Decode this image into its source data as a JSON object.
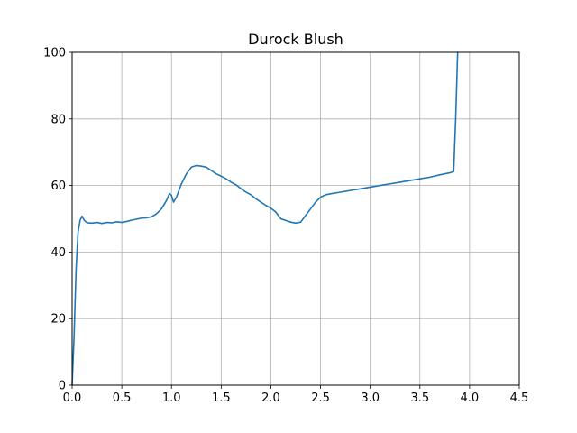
{
  "chart_data": {
    "type": "line",
    "title": "Durock Blush",
    "xlabel": "",
    "ylabel": "",
    "xlim": [
      0.0,
      4.5
    ],
    "ylim": [
      0,
      100
    ],
    "grid": true,
    "x_ticks": [
      0.0,
      0.5,
      1.0,
      1.5,
      2.0,
      2.5,
      3.0,
      3.5,
      4.0,
      4.5
    ],
    "x_tick_labels": [
      "0.0",
      "0.5",
      "1.0",
      "1.5",
      "2.0",
      "2.5",
      "3.0",
      "3.5",
      "4.0",
      "4.5"
    ],
    "y_ticks": [
      0,
      20,
      40,
      60,
      80,
      100
    ],
    "y_tick_labels": [
      "0",
      "20",
      "40",
      "60",
      "80",
      "100"
    ],
    "line_color": "#1f77b4",
    "series": [
      {
        "x": [
          0.0,
          0.02,
          0.04,
          0.06,
          0.08,
          0.1,
          0.12,
          0.15,
          0.2,
          0.25,
          0.3,
          0.35,
          0.4,
          0.45,
          0.5,
          0.55,
          0.6,
          0.65,
          0.7,
          0.75,
          0.8,
          0.85,
          0.9,
          0.95,
          0.98,
          1.0,
          1.02,
          1.05,
          1.1,
          1.15,
          1.2,
          1.25,
          1.3,
          1.35,
          1.4,
          1.45,
          1.5,
          1.55,
          1.6,
          1.65,
          1.7,
          1.75,
          1.8,
          1.85,
          1.9,
          1.95,
          2.0,
          2.05,
          2.1,
          2.15,
          2.2,
          2.25,
          2.3,
          2.35,
          2.4,
          2.45,
          2.5,
          2.55,
          2.6,
          2.7,
          2.8,
          2.9,
          3.0,
          3.1,
          3.2,
          3.3,
          3.4,
          3.5,
          3.6,
          3.7,
          3.8,
          3.84,
          3.86,
          3.88
        ],
        "y": [
          0.0,
          15.0,
          35.0,
          46.0,
          49.5,
          50.8,
          49.6,
          48.8,
          48.7,
          48.9,
          48.6,
          48.9,
          48.8,
          49.1,
          48.9,
          49.2,
          49.6,
          49.9,
          50.2,
          50.3,
          50.6,
          51.5,
          53.0,
          55.5,
          57.6,
          57.0,
          55.0,
          56.5,
          60.5,
          63.5,
          65.5,
          66.0,
          65.8,
          65.5,
          64.5,
          63.5,
          62.8,
          62.0,
          61.0,
          60.2,
          59.0,
          58.0,
          57.2,
          56.0,
          55.0,
          54.0,
          53.2,
          52.0,
          50.0,
          49.5,
          49.0,
          48.7,
          49.0,
          51.0,
          53.0,
          55.0,
          56.5,
          57.2,
          57.5,
          58.0,
          58.5,
          59.0,
          59.5,
          60.0,
          60.5,
          61.0,
          61.5,
          62.0,
          62.5,
          63.2,
          63.8,
          64.2,
          80.0,
          100.0
        ]
      }
    ]
  }
}
